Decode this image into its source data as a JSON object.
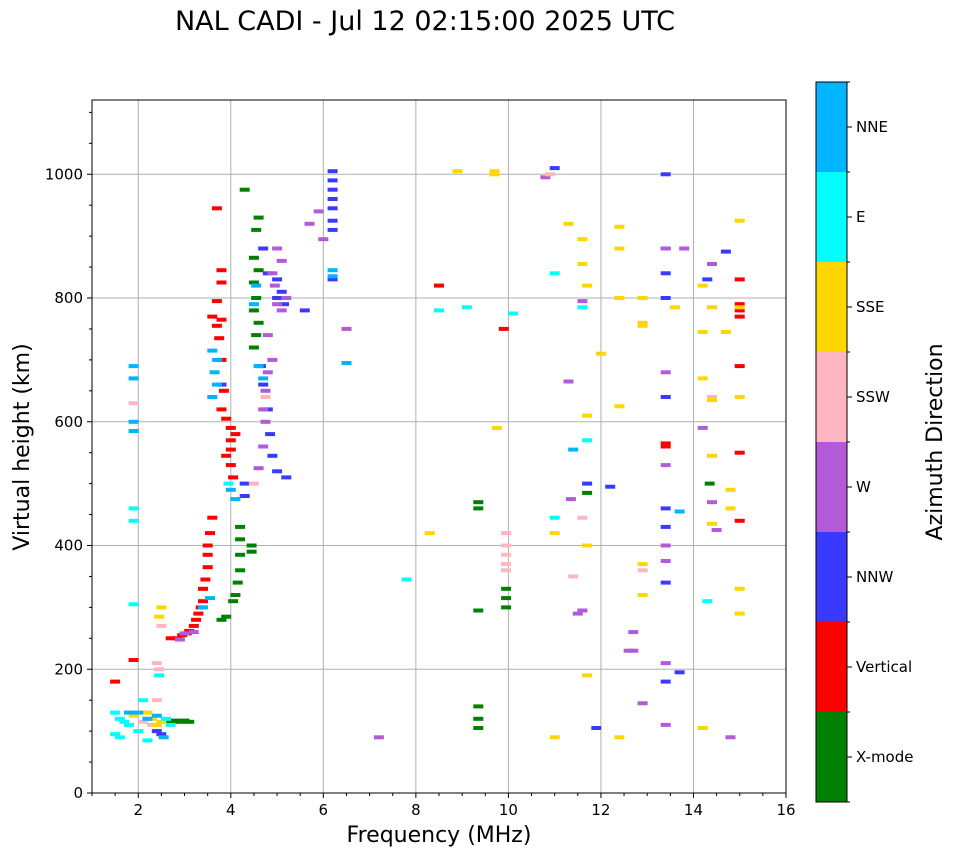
{
  "chart_data": {
    "type": "scatter",
    "title": "NAL CADI - Jul 12 02:15:00 2025 UTC",
    "xlabel": "Frequency (MHz)",
    "ylabel": "Virtual height (km)",
    "xlim": [
      1,
      16
    ],
    "ylim": [
      0,
      1120
    ],
    "xticks": [
      2,
      4,
      6,
      8,
      10,
      12,
      14,
      16
    ],
    "yticks": [
      0,
      200,
      400,
      600,
      800,
      1000
    ],
    "grid": true,
    "colorbar": {
      "label": "Azimuth Direction",
      "categories": [
        {
          "name": "X-mode",
          "color": "#008000"
        },
        {
          "name": "Vertical",
          "color": "#ff0000"
        },
        {
          "name": "NNW",
          "color": "#3a3aff"
        },
        {
          "name": "W",
          "color": "#b25ad8"
        },
        {
          "name": "SSW",
          "color": "#ffb6c1"
        },
        {
          "name": "SSE",
          "color": "#ffd700"
        },
        {
          "name": "E",
          "color": "#00ffff"
        },
        {
          "name": "NNE",
          "color": "#00b4ff"
        }
      ]
    },
    "series": [
      {
        "name": "X-mode",
        "points": [
          [
            4.3,
            975
          ],
          [
            4.6,
            930
          ],
          [
            4.55,
            910
          ],
          [
            4.5,
            865
          ],
          [
            4.6,
            845
          ],
          [
            4.5,
            825
          ],
          [
            4.55,
            800
          ],
          [
            4.5,
            780
          ],
          [
            4.6,
            760
          ],
          [
            4.55,
            740
          ],
          [
            4.5,
            720
          ],
          [
            4.2,
            430
          ],
          [
            4.2,
            410
          ],
          [
            4.45,
            400
          ],
          [
            4.45,
            390
          ],
          [
            4.2,
            385
          ],
          [
            4.2,
            360
          ],
          [
            4.15,
            340
          ],
          [
            4.1,
            320
          ],
          [
            4.05,
            310
          ],
          [
            3.9,
            285
          ],
          [
            3.8,
            280
          ],
          [
            2.7,
            115
          ],
          [
            2.8,
            117
          ],
          [
            2.9,
            115
          ],
          [
            3.0,
            117
          ],
          [
            3.1,
            115
          ],
          [
            9.35,
            470
          ],
          [
            9.35,
            460
          ],
          [
            9.35,
            295
          ],
          [
            9.35,
            140
          ],
          [
            9.35,
            120
          ],
          [
            9.35,
            105
          ],
          [
            9.95,
            330
          ],
          [
            9.95,
            315
          ],
          [
            9.95,
            300
          ],
          [
            11.7,
            485
          ],
          [
            14.35,
            500
          ]
        ]
      },
      {
        "name": "Vertical",
        "points": [
          [
            1.5,
            180
          ],
          [
            1.9,
            215
          ],
          [
            3.7,
            945
          ],
          [
            3.8,
            845
          ],
          [
            3.8,
            825
          ],
          [
            3.7,
            795
          ],
          [
            3.8,
            765
          ],
          [
            3.6,
            770
          ],
          [
            3.7,
            755
          ],
          [
            3.75,
            735
          ],
          [
            3.8,
            700
          ],
          [
            3.85,
            650
          ],
          [
            3.8,
            620
          ],
          [
            3.9,
            605
          ],
          [
            4.0,
            590
          ],
          [
            4.1,
            580
          ],
          [
            4.0,
            570
          ],
          [
            4.0,
            555
          ],
          [
            3.9,
            545
          ],
          [
            4.0,
            530
          ],
          [
            4.05,
            510
          ],
          [
            3.6,
            445
          ],
          [
            3.55,
            420
          ],
          [
            3.5,
            400
          ],
          [
            3.5,
            385
          ],
          [
            3.5,
            365
          ],
          [
            3.45,
            345
          ],
          [
            3.4,
            330
          ],
          [
            3.4,
            310
          ],
          [
            3.35,
            300
          ],
          [
            3.3,
            290
          ],
          [
            3.25,
            280
          ],
          [
            3.2,
            270
          ],
          [
            3.1,
            262
          ],
          [
            3.05,
            258
          ],
          [
            2.95,
            255
          ],
          [
            2.85,
            250
          ],
          [
            2.7,
            250
          ],
          [
            8.5,
            820
          ],
          [
            9.9,
            750
          ],
          [
            15,
            830
          ],
          [
            15,
            790
          ],
          [
            15,
            780
          ],
          [
            15,
            770
          ],
          [
            15,
            690
          ],
          [
            15,
            550
          ],
          [
            15,
            440
          ],
          [
            13.4,
            565
          ],
          [
            13.4,
            560
          ]
        ]
      },
      {
        "name": "NNW",
        "points": [
          [
            6.2,
            1005
          ],
          [
            6.2,
            990
          ],
          [
            6.2,
            975
          ],
          [
            6.2,
            960
          ],
          [
            6.2,
            945
          ],
          [
            6.2,
            925
          ],
          [
            6.2,
            910
          ],
          [
            4.7,
            880
          ],
          [
            4.8,
            840
          ],
          [
            5.0,
            830
          ],
          [
            5.1,
            810
          ],
          [
            5.0,
            800
          ],
          [
            5.15,
            790
          ],
          [
            4.65,
            690
          ],
          [
            4.7,
            660
          ],
          [
            4.8,
            620
          ],
          [
            4.85,
            580
          ],
          [
            4.9,
            545
          ],
          [
            5.0,
            520
          ],
          [
            5.2,
            510
          ],
          [
            4.3,
            500
          ],
          [
            4.3,
            480
          ],
          [
            3.8,
            660
          ],
          [
            5.6,
            780
          ],
          [
            6.2,
            830
          ],
          [
            2.5,
            95
          ],
          [
            2.4,
            100
          ],
          [
            12.2,
            495
          ],
          [
            13.4,
            1000
          ],
          [
            13.4,
            880
          ],
          [
            13.4,
            840
          ],
          [
            13.4,
            800
          ],
          [
            13.4,
            640
          ],
          [
            13.4,
            460
          ],
          [
            13.4,
            430
          ],
          [
            13.4,
            340
          ],
          [
            13.4,
            180
          ],
          [
            13.7,
            195
          ],
          [
            14.3,
            830
          ],
          [
            14.7,
            875
          ],
          [
            11.9,
            105
          ],
          [
            11,
            1010
          ],
          [
            11.7,
            500
          ]
        ]
      },
      {
        "name": "W",
        "points": [
          [
            5.0,
            880
          ],
          [
            5.1,
            860
          ],
          [
            4.9,
            840
          ],
          [
            4.95,
            820
          ],
          [
            5.2,
            800
          ],
          [
            5.0,
            790
          ],
          [
            5.1,
            780
          ],
          [
            4.8,
            740
          ],
          [
            4.9,
            700
          ],
          [
            4.8,
            680
          ],
          [
            4.75,
            650
          ],
          [
            4.7,
            620
          ],
          [
            4.75,
            600
          ],
          [
            4.7,
            560
          ],
          [
            4.6,
            525
          ],
          [
            6.5,
            750
          ],
          [
            6.0,
            895
          ],
          [
            5.7,
            920
          ],
          [
            5.9,
            940
          ],
          [
            3.0,
            258
          ],
          [
            2.9,
            248
          ],
          [
            3.2,
            260
          ],
          [
            10.8,
            995
          ],
          [
            11.3,
            665
          ],
          [
            11.6,
            795
          ],
          [
            11.6,
            295
          ],
          [
            12.7,
            260
          ],
          [
            12.7,
            230
          ],
          [
            12.6,
            230
          ],
          [
            13.4,
            880
          ],
          [
            13.4,
            680
          ],
          [
            13.4,
            530
          ],
          [
            13.4,
            400
          ],
          [
            13.4,
            375
          ],
          [
            13.4,
            210
          ],
          [
            13.8,
            880
          ],
          [
            14.2,
            590
          ],
          [
            14.4,
            855
          ],
          [
            14.4,
            470
          ],
          [
            14.5,
            425
          ],
          [
            14.8,
            90
          ],
          [
            13.4,
            110
          ],
          [
            12.9,
            145
          ],
          [
            7.2,
            90
          ],
          [
            11.5,
            290
          ],
          [
            11.35,
            475
          ]
        ]
      },
      {
        "name": "SSW",
        "points": [
          [
            1.9,
            630
          ],
          [
            2.3,
            110
          ],
          [
            2.2,
            120
          ],
          [
            2.1,
            115
          ],
          [
            2.4,
            210
          ],
          [
            2.45,
            200
          ],
          [
            2.5,
            270
          ],
          [
            2.4,
            150
          ],
          [
            4.5,
            500
          ],
          [
            4.75,
            640
          ],
          [
            9.95,
            400
          ],
          [
            9.95,
            385
          ],
          [
            9.95,
            370
          ],
          [
            9.95,
            360
          ],
          [
            9.95,
            420
          ],
          [
            10.9,
            1000
          ],
          [
            11.6,
            445
          ],
          [
            11.4,
            350
          ],
          [
            12.9,
            360
          ],
          [
            14.4,
            640
          ]
        ]
      },
      {
        "name": "SSE",
        "points": [
          [
            2.5,
            300
          ],
          [
            2.45,
            285
          ],
          [
            2.3,
            120
          ],
          [
            2.2,
            130
          ],
          [
            2.4,
            110
          ],
          [
            2.5,
            115
          ],
          [
            1.9,
            125
          ],
          [
            8.9,
            1005
          ],
          [
            9.7,
            1000
          ],
          [
            9.7,
            1005
          ],
          [
            8.3,
            420
          ],
          [
            9.75,
            590
          ],
          [
            11,
            90
          ],
          [
            11,
            420
          ],
          [
            11.3,
            920
          ],
          [
            11.6,
            895
          ],
          [
            11.6,
            855
          ],
          [
            11.7,
            820
          ],
          [
            11.7,
            610
          ],
          [
            11.7,
            400
          ],
          [
            11.7,
            190
          ],
          [
            12.0,
            710
          ],
          [
            12.4,
            915
          ],
          [
            12.4,
            880
          ],
          [
            12.4,
            800
          ],
          [
            12.4,
            625
          ],
          [
            12.4,
            90
          ],
          [
            12.9,
            800
          ],
          [
            12.9,
            760
          ],
          [
            12.9,
            370
          ],
          [
            12.9,
            320
          ],
          [
            13.6,
            785
          ],
          [
            14.2,
            820
          ],
          [
            14.2,
            670
          ],
          [
            14.2,
            745
          ],
          [
            14.2,
            105
          ],
          [
            14.4,
            785
          ],
          [
            14.4,
            635
          ],
          [
            14.4,
            545
          ],
          [
            14.4,
            435
          ],
          [
            14.7,
            745
          ],
          [
            14.8,
            490
          ],
          [
            14.8,
            460
          ],
          [
            15,
            925
          ],
          [
            15,
            785
          ],
          [
            15,
            640
          ],
          [
            15,
            330
          ],
          [
            15,
            290
          ],
          [
            12.9,
            755
          ]
        ]
      },
      {
        "name": "E",
        "points": [
          [
            1.5,
            130
          ],
          [
            1.6,
            120
          ],
          [
            1.5,
            95
          ],
          [
            1.6,
            90
          ],
          [
            1.7,
            115
          ],
          [
            1.8,
            110
          ],
          [
            2.0,
            100
          ],
          [
            1.9,
            440
          ],
          [
            1.9,
            460
          ],
          [
            1.9,
            305
          ],
          [
            2.1,
            150
          ],
          [
            2.45,
            190
          ],
          [
            2.6,
            120
          ],
          [
            2.7,
            110
          ],
          [
            2.2,
            85
          ],
          [
            8.5,
            780
          ],
          [
            7.8,
            345
          ],
          [
            11,
            840
          ],
          [
            11,
            445
          ],
          [
            11.7,
            570
          ],
          [
            14.3,
            310
          ],
          [
            10.1,
            775
          ],
          [
            11.6,
            785
          ],
          [
            9.1,
            785
          ],
          [
            3.95,
            500
          ]
        ]
      },
      {
        "name": "NNE",
        "points": [
          [
            1.9,
            690
          ],
          [
            1.9,
            670
          ],
          [
            1.9,
            600
          ],
          [
            1.9,
            585
          ],
          [
            2.2,
            120
          ],
          [
            2.4,
            125
          ],
          [
            2.0,
            130
          ],
          [
            1.8,
            130
          ],
          [
            3.6,
            715
          ],
          [
            3.7,
            700
          ],
          [
            3.65,
            680
          ],
          [
            3.7,
            660
          ],
          [
            3.6,
            640
          ],
          [
            4.6,
            690
          ],
          [
            4.7,
            670
          ],
          [
            4.0,
            490
          ],
          [
            4.1,
            475
          ],
          [
            6.2,
            835
          ],
          [
            6.2,
            845
          ],
          [
            6.5,
            695
          ],
          [
            11.4,
            555
          ],
          [
            2.55,
            90
          ],
          [
            13.7,
            455
          ],
          [
            4.55,
            820
          ],
          [
            4.5,
            790
          ],
          [
            3.55,
            315
          ],
          [
            3.4,
            300
          ]
        ]
      }
    ]
  }
}
